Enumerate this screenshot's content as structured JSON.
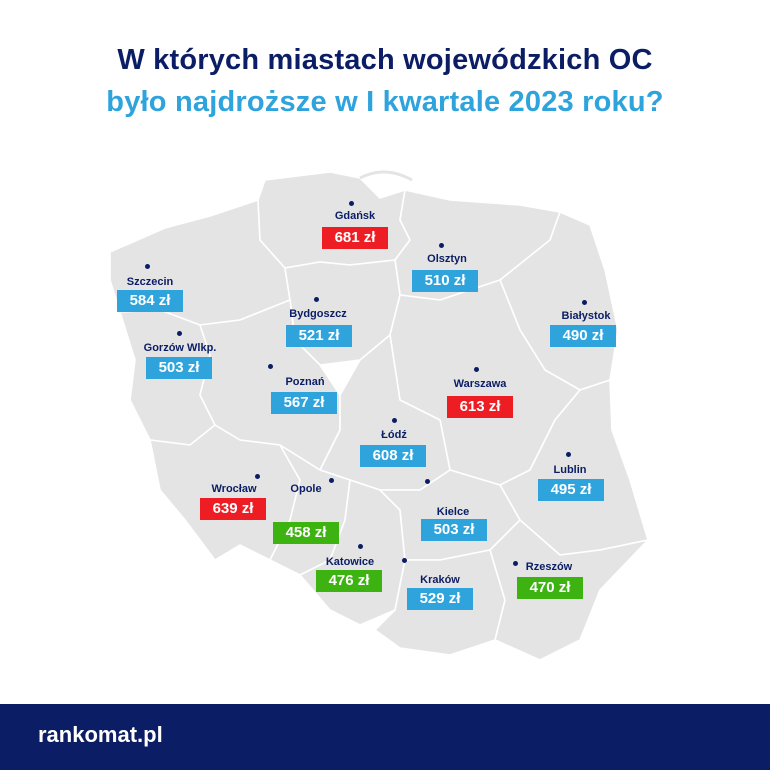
{
  "title_line1": "W których miastach wojewódzkich OC",
  "title_line2": "było najdroższe w I kwartale 2023 roku?",
  "colors": {
    "high": "#ee1d23",
    "mid": "#2ea3dc",
    "low": "#3db312",
    "map": "#e4e4e4",
    "navy": "#0b1d64"
  },
  "cities": [
    {
      "name": "Gdańsk",
      "price": "681 zł",
      "level": "high"
    },
    {
      "name": "Olsztyn",
      "price": "510 zł",
      "level": "mid"
    },
    {
      "name": "Szczecin",
      "price": "584 zł",
      "level": "mid"
    },
    {
      "name": "Bydgoszcz",
      "price": "521 zł",
      "level": "mid"
    },
    {
      "name": "Białystok",
      "price": "490 zł",
      "level": "mid"
    },
    {
      "name": "Gorzów Wlkp.",
      "price": "503 zł",
      "level": "mid"
    },
    {
      "name": "Poznań",
      "price": "567 zł",
      "level": "mid"
    },
    {
      "name": "Warszawa",
      "price": "613 zł",
      "level": "high"
    },
    {
      "name": "Łódź",
      "price": "608 zł",
      "level": "mid"
    },
    {
      "name": "Lublin",
      "price": "495 zł",
      "level": "mid"
    },
    {
      "name": "Wrocław",
      "price": "639 zł",
      "level": "high"
    },
    {
      "name": "Opole",
      "price": "458 zł",
      "level": "low"
    },
    {
      "name": "Kielce",
      "price": "503 zł",
      "level": "mid"
    },
    {
      "name": "Katowice",
      "price": "476 zł",
      "level": "low"
    },
    {
      "name": "Kraków",
      "price": "529 zł",
      "level": "mid"
    },
    {
      "name": "Rzeszów",
      "price": "470 zł",
      "level": "low"
    }
  ],
  "footer": {
    "logo": "rankomat.pl"
  }
}
